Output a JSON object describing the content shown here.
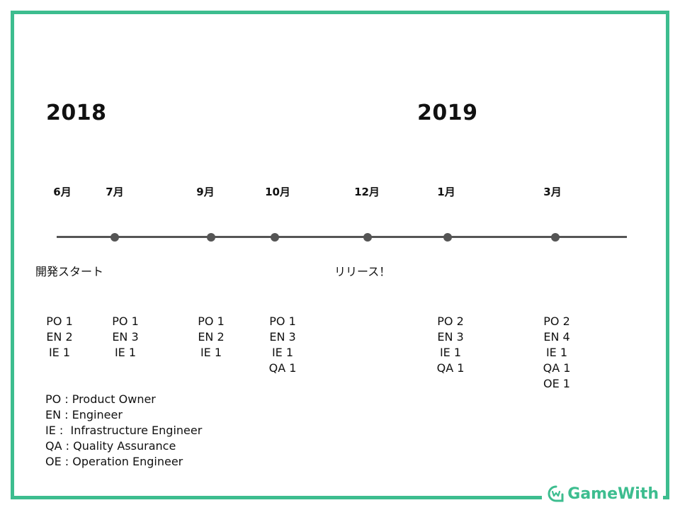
{
  "years": [
    {
      "label": "2018"
    },
    {
      "label": "2019"
    }
  ],
  "months": [
    {
      "label": "6月"
    },
    {
      "label": "7月"
    },
    {
      "label": "9月"
    },
    {
      "label": "10月"
    },
    {
      "label": "12月"
    },
    {
      "label": "1月"
    },
    {
      "label": "3月"
    }
  ],
  "events": {
    "start": "開発スタート",
    "release": "リリース！"
  },
  "teams": [
    {
      "lines": [
        "PO 1",
        "EN 2",
        "IE 1"
      ]
    },
    {
      "lines": [
        "PO 1",
        "EN 3",
        "IE 1"
      ]
    },
    {
      "lines": [
        "PO 1",
        "EN 2",
        "IE 1"
      ]
    },
    {
      "lines": [
        "PO 1",
        "EN 3",
        "IE 1",
        "QA 1"
      ]
    },
    {
      "lines": [
        "PO 2",
        "EN 3",
        "IE 1",
        "QA 1"
      ]
    },
    {
      "lines": [
        "PO 2",
        "EN 4",
        "IE 1",
        "QA 1",
        "OE 1"
      ]
    }
  ],
  "legend": [
    "PO : Product Owner",
    "EN : Engineer",
    "IE :  Infrastructure Engineer",
    "QA : Quality Assurance",
    "OE : Operation Engineer"
  ],
  "logo": {
    "text": "GameWith",
    "icon": "gamewith-logo-icon",
    "color": "#3dbd8f"
  },
  "colors": {
    "frame": "#3dbd8f",
    "timeline": "#555555"
  }
}
